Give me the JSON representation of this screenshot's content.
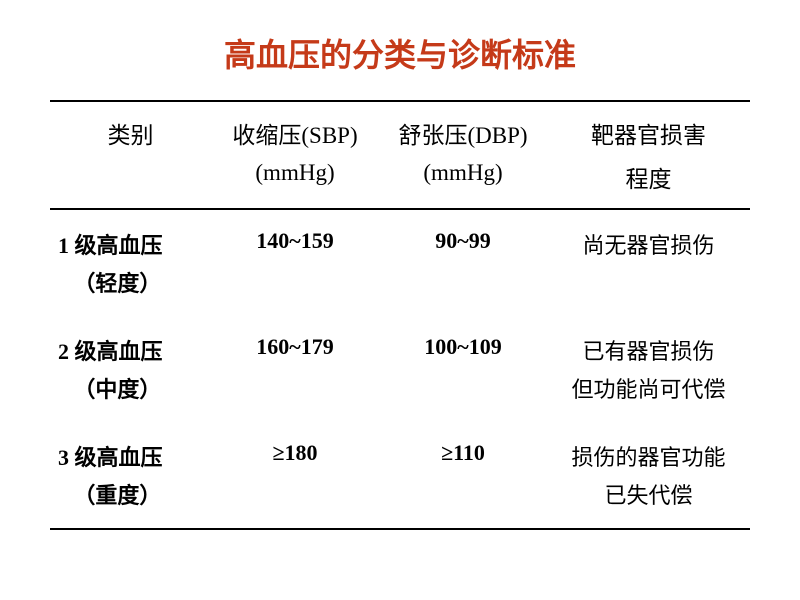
{
  "title": {
    "text": "高血压的分类与诊断标准",
    "color": "#c53a19",
    "fontsize": 32
  },
  "table": {
    "border_color": "#000000",
    "border_width": 2,
    "header_fontsize": 23,
    "cell_fontsize": 22,
    "columns": [
      {
        "line1": "类别",
        "line2": "",
        "width_pct": 23
      },
      {
        "line1": "收缩压(SBP)",
        "line2": "(mmHg)",
        "width_pct": 24
      },
      {
        "line1": "舒张压(DBP)",
        "line2": "(mmHg)",
        "width_pct": 24
      },
      {
        "line1": "靶器官损害",
        "line2": "程度",
        "width_pct": 29
      }
    ],
    "rows": [
      {
        "category_line1": "1 级高血压",
        "category_line2": "（轻度）",
        "sbp": "140~159",
        "dbp": "90~99",
        "damage_line1": "尚无器官损伤",
        "damage_line2": ""
      },
      {
        "category_line1": "2 级高血压",
        "category_line2": "（中度）",
        "sbp": "160~179",
        "dbp": "100~109",
        "damage_line1": "已有器官损伤",
        "damage_line2": "但功能尚可代偿"
      },
      {
        "category_line1": "3 级高血压",
        "category_line2": "（重度）",
        "sbp": "≥180",
        "dbp": "≥110",
        "damage_line1": "损伤的器官功能",
        "damage_line2": "已失代偿"
      }
    ]
  }
}
